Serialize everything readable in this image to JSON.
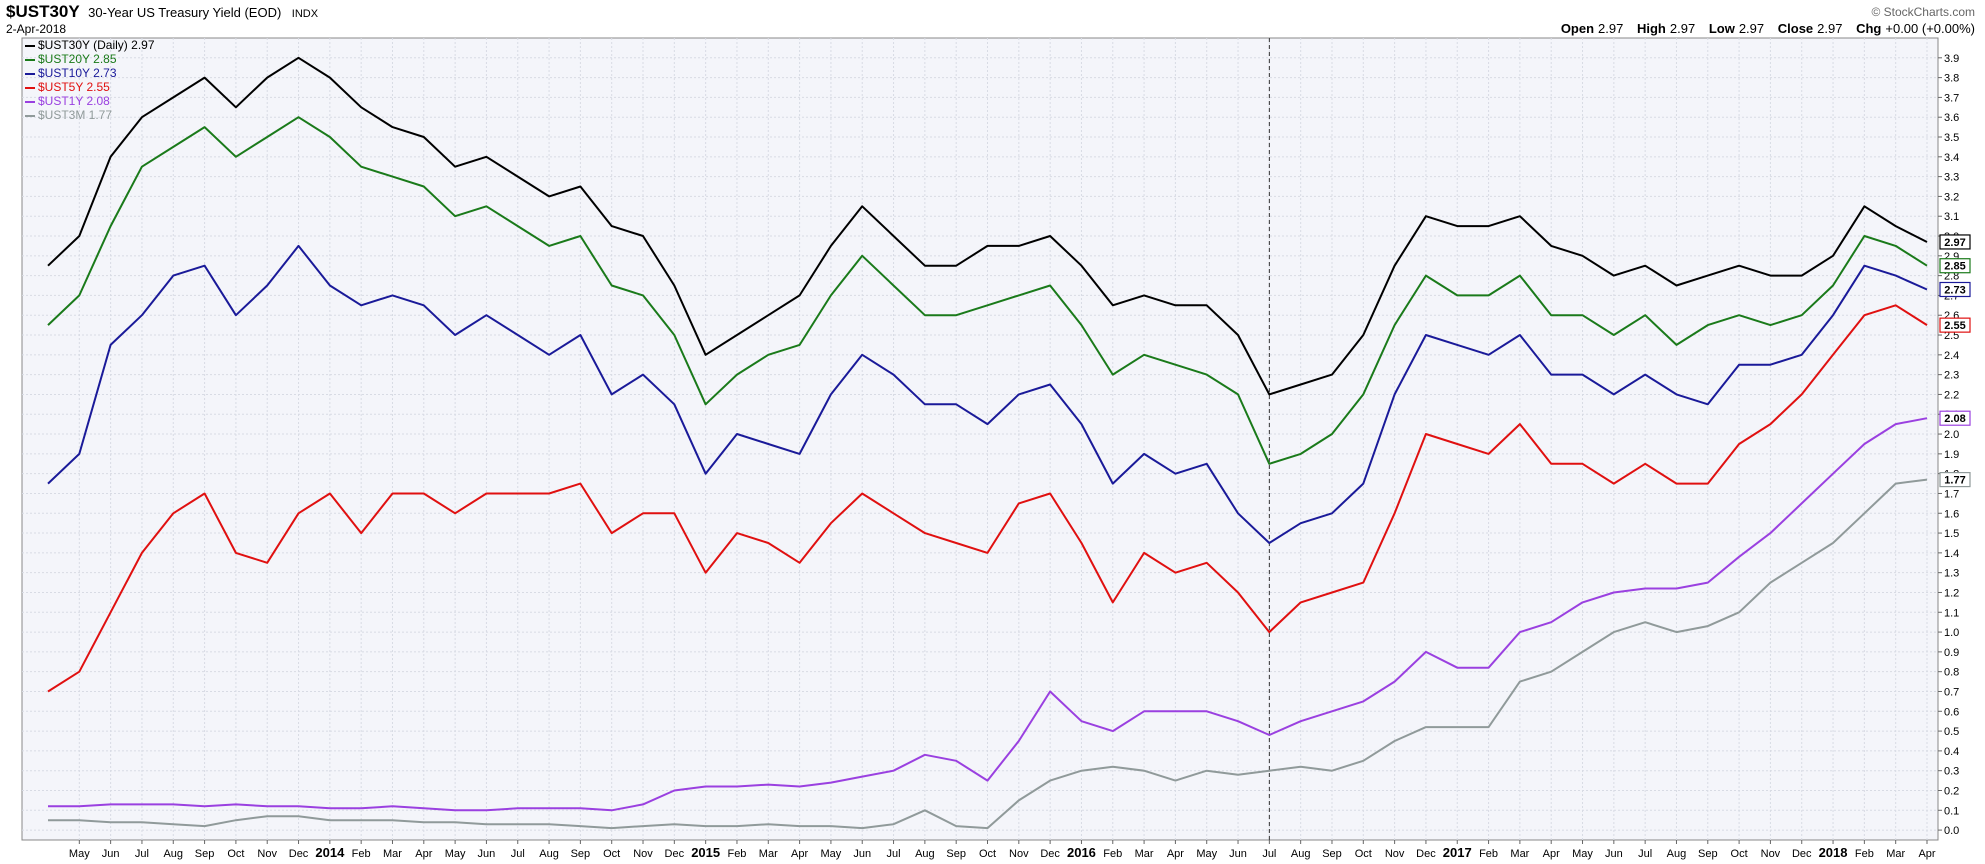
{
  "header": {
    "symbol": "$UST30Y",
    "subtitle": "30-Year US Treasury Yield (EOD)",
    "exchange": "INDX",
    "date": "2-Apr-2018",
    "brand": "© StockCharts.com",
    "ohlc": [
      {
        "label": "Open",
        "value": "2.97"
      },
      {
        "label": "High",
        "value": "2.97"
      },
      {
        "label": "Low",
        "value": "2.97"
      },
      {
        "label": "Close",
        "value": "2.97"
      },
      {
        "label": "Chg",
        "value": "+0.00 (+0.00%)"
      }
    ]
  },
  "legend": [
    {
      "label": "$UST30Y (Daily) 2.97",
      "color": "#000000"
    },
    {
      "label": "$UST20Y 2.85",
      "color": "#1a7a1a"
    },
    {
      "label": "$UST10Y 2.73",
      "color": "#1a1a99"
    },
    {
      "label": "$UST5Y 2.55",
      "color": "#e01010"
    },
    {
      "label": "$UST1Y 2.08",
      "color": "#9a40e0"
    },
    {
      "label": "$UST3M 1.77",
      "color": "#909a9a"
    }
  ],
  "chart_data": {
    "type": "line",
    "x": [
      "2013-04",
      "2013-05",
      "2013-06",
      "2013-07",
      "2013-08",
      "2013-09",
      "2013-10",
      "2013-11",
      "2013-12",
      "2014-01",
      "2014-02",
      "2014-03",
      "2014-04",
      "2014-05",
      "2014-06",
      "2014-07",
      "2014-08",
      "2014-09",
      "2014-10",
      "2014-11",
      "2014-12",
      "2015-01",
      "2015-02",
      "2015-03",
      "2015-04",
      "2015-05",
      "2015-06",
      "2015-07",
      "2015-08",
      "2015-09",
      "2015-10",
      "2015-11",
      "2015-12",
      "2016-01",
      "2016-02",
      "2016-03",
      "2016-04",
      "2016-05",
      "2016-06",
      "2016-07",
      "2016-08",
      "2016-09",
      "2016-10",
      "2016-11",
      "2016-12",
      "2017-01",
      "2017-02",
      "2017-03",
      "2017-04",
      "2017-05",
      "2017-06",
      "2017-07",
      "2017-08",
      "2017-09",
      "2017-10",
      "2017-11",
      "2017-12",
      "2018-01",
      "2018-02",
      "2018-03",
      "2018-04"
    ],
    "series": [
      {
        "name": "$UST30Y",
        "color": "#000000",
        "last": "2.97",
        "values": [
          2.85,
          3.0,
          3.4,
          3.6,
          3.7,
          3.8,
          3.65,
          3.8,
          3.9,
          3.8,
          3.65,
          3.55,
          3.5,
          3.35,
          3.4,
          3.3,
          3.2,
          3.25,
          3.05,
          3.0,
          2.75,
          2.4,
          2.5,
          2.6,
          2.7,
          2.95,
          3.15,
          3.0,
          2.85,
          2.85,
          2.95,
          2.95,
          3.0,
          2.85,
          2.65,
          2.7,
          2.65,
          2.65,
          2.5,
          2.2,
          2.25,
          2.3,
          2.5,
          2.85,
          3.1,
          3.05,
          3.05,
          3.1,
          2.95,
          2.9,
          2.8,
          2.85,
          2.75,
          2.8,
          2.85,
          2.8,
          2.8,
          2.9,
          3.15,
          3.05,
          2.97
        ]
      },
      {
        "name": "$UST20Y",
        "color": "#1a7a1a",
        "last": "2.85",
        "values": [
          2.55,
          2.7,
          3.05,
          3.35,
          3.45,
          3.55,
          3.4,
          3.5,
          3.6,
          3.5,
          3.35,
          3.3,
          3.25,
          3.1,
          3.15,
          3.05,
          2.95,
          3.0,
          2.75,
          2.7,
          2.5,
          2.15,
          2.3,
          2.4,
          2.45,
          2.7,
          2.9,
          2.75,
          2.6,
          2.6,
          2.65,
          2.7,
          2.75,
          2.55,
          2.3,
          2.4,
          2.35,
          2.3,
          2.2,
          1.85,
          1.9,
          2.0,
          2.2,
          2.55,
          2.8,
          2.7,
          2.7,
          2.8,
          2.6,
          2.6,
          2.5,
          2.6,
          2.45,
          2.55,
          2.6,
          2.55,
          2.6,
          2.75,
          3.0,
          2.95,
          2.85
        ]
      },
      {
        "name": "$UST10Y",
        "color": "#1a1a99",
        "last": "2.73",
        "values": [
          1.75,
          1.9,
          2.45,
          2.6,
          2.8,
          2.85,
          2.6,
          2.75,
          2.95,
          2.75,
          2.65,
          2.7,
          2.65,
          2.5,
          2.6,
          2.5,
          2.4,
          2.5,
          2.2,
          2.3,
          2.15,
          1.8,
          2.0,
          1.95,
          1.9,
          2.2,
          2.4,
          2.3,
          2.15,
          2.15,
          2.05,
          2.2,
          2.25,
          2.05,
          1.75,
          1.9,
          1.8,
          1.85,
          1.6,
          1.45,
          1.55,
          1.6,
          1.75,
          2.2,
          2.5,
          2.45,
          2.4,
          2.5,
          2.3,
          2.3,
          2.2,
          2.3,
          2.2,
          2.15,
          2.35,
          2.35,
          2.4,
          2.6,
          2.85,
          2.8,
          2.73
        ]
      },
      {
        "name": "$UST5Y",
        "color": "#e01010",
        "last": "2.55",
        "values": [
          0.7,
          0.8,
          1.1,
          1.4,
          1.6,
          1.7,
          1.4,
          1.35,
          1.6,
          1.7,
          1.5,
          1.7,
          1.7,
          1.6,
          1.7,
          1.7,
          1.7,
          1.75,
          1.5,
          1.6,
          1.6,
          1.3,
          1.5,
          1.45,
          1.35,
          1.55,
          1.7,
          1.6,
          1.5,
          1.45,
          1.4,
          1.65,
          1.7,
          1.45,
          1.15,
          1.4,
          1.3,
          1.35,
          1.2,
          1.0,
          1.15,
          1.2,
          1.25,
          1.6,
          2.0,
          1.95,
          1.9,
          2.05,
          1.85,
          1.85,
          1.75,
          1.85,
          1.75,
          1.75,
          1.95,
          2.05,
          2.2,
          2.4,
          2.6,
          2.65,
          2.55
        ]
      },
      {
        "name": "$UST1Y",
        "color": "#9a40e0",
        "last": "2.08",
        "values": [
          0.12,
          0.12,
          0.13,
          0.13,
          0.13,
          0.12,
          0.13,
          0.12,
          0.12,
          0.11,
          0.11,
          0.12,
          0.11,
          0.1,
          0.1,
          0.11,
          0.11,
          0.11,
          0.1,
          0.13,
          0.2,
          0.22,
          0.22,
          0.23,
          0.22,
          0.24,
          0.27,
          0.3,
          0.38,
          0.35,
          0.25,
          0.45,
          0.7,
          0.55,
          0.5,
          0.6,
          0.6,
          0.6,
          0.55,
          0.48,
          0.55,
          0.6,
          0.65,
          0.75,
          0.9,
          0.82,
          0.82,
          1.0,
          1.05,
          1.15,
          1.2,
          1.22,
          1.22,
          1.25,
          1.38,
          1.5,
          1.65,
          1.8,
          1.95,
          2.05,
          2.08
        ]
      },
      {
        "name": "$UST3M",
        "color": "#909a9a",
        "last": "1.77",
        "values": [
          0.05,
          0.05,
          0.04,
          0.04,
          0.03,
          0.02,
          0.05,
          0.07,
          0.07,
          0.05,
          0.05,
          0.05,
          0.04,
          0.04,
          0.03,
          0.03,
          0.03,
          0.02,
          0.01,
          0.02,
          0.03,
          0.02,
          0.02,
          0.03,
          0.02,
          0.02,
          0.01,
          0.03,
          0.1,
          0.02,
          0.01,
          0.15,
          0.25,
          0.3,
          0.32,
          0.3,
          0.25,
          0.3,
          0.28,
          0.3,
          0.32,
          0.3,
          0.35,
          0.45,
          0.52,
          0.52,
          0.52,
          0.75,
          0.8,
          0.9,
          1.0,
          1.05,
          1.0,
          1.03,
          1.1,
          1.25,
          1.35,
          1.45,
          1.6,
          1.75,
          1.77
        ]
      }
    ],
    "ylim": [
      -0.05,
      4.0
    ],
    "yticks": [
      0.0,
      0.1,
      0.2,
      0.3,
      0.4,
      0.5,
      0.6,
      0.7,
      0.8,
      0.9,
      1.0,
      1.1,
      1.2,
      1.3,
      1.4,
      1.5,
      1.6,
      1.7,
      1.8,
      1.9,
      2.0,
      2.1,
      2.2,
      2.3,
      2.4,
      2.5,
      2.6,
      2.7,
      2.8,
      2.9,
      3.0,
      3.1,
      3.2,
      3.3,
      3.4,
      3.5,
      3.6,
      3.7,
      3.8,
      3.9
    ],
    "xticks": [
      {
        "label": "May",
        "x": "2013-05"
      },
      {
        "label": "Jun",
        "x": "2013-06"
      },
      {
        "label": "Jul",
        "x": "2013-07"
      },
      {
        "label": "Aug",
        "x": "2013-08"
      },
      {
        "label": "Sep",
        "x": "2013-09"
      },
      {
        "label": "Oct",
        "x": "2013-10"
      },
      {
        "label": "Nov",
        "x": "2013-11"
      },
      {
        "label": "Dec",
        "x": "2013-12"
      },
      {
        "label": "2014",
        "x": "2014-01",
        "year": true
      },
      {
        "label": "Feb",
        "x": "2014-02"
      },
      {
        "label": "Mar",
        "x": "2014-03"
      },
      {
        "label": "Apr",
        "x": "2014-04"
      },
      {
        "label": "May",
        "x": "2014-05"
      },
      {
        "label": "Jun",
        "x": "2014-06"
      },
      {
        "label": "Jul",
        "x": "2014-07"
      },
      {
        "label": "Aug",
        "x": "2014-08"
      },
      {
        "label": "Sep",
        "x": "2014-09"
      },
      {
        "label": "Oct",
        "x": "2014-10"
      },
      {
        "label": "Nov",
        "x": "2014-11"
      },
      {
        "label": "Dec",
        "x": "2014-12"
      },
      {
        "label": "2015",
        "x": "2015-01",
        "year": true
      },
      {
        "label": "Feb",
        "x": "2015-02"
      },
      {
        "label": "Mar",
        "x": "2015-03"
      },
      {
        "label": "Apr",
        "x": "2015-04"
      },
      {
        "label": "May",
        "x": "2015-05"
      },
      {
        "label": "Jun",
        "x": "2015-06"
      },
      {
        "label": "Jul",
        "x": "2015-07"
      },
      {
        "label": "Aug",
        "x": "2015-08"
      },
      {
        "label": "Sep",
        "x": "2015-09"
      },
      {
        "label": "Oct",
        "x": "2015-10"
      },
      {
        "label": "Nov",
        "x": "2015-11"
      },
      {
        "label": "Dec",
        "x": "2015-12"
      },
      {
        "label": "2016",
        "x": "2016-01",
        "year": true
      },
      {
        "label": "Feb",
        "x": "2016-02"
      },
      {
        "label": "Mar",
        "x": "2016-03"
      },
      {
        "label": "Apr",
        "x": "2016-04"
      },
      {
        "label": "May",
        "x": "2016-05"
      },
      {
        "label": "Jun",
        "x": "2016-06"
      },
      {
        "label": "Jul",
        "x": "2016-07"
      },
      {
        "label": "Aug",
        "x": "2016-08"
      },
      {
        "label": "Sep",
        "x": "2016-09"
      },
      {
        "label": "Oct",
        "x": "2016-10"
      },
      {
        "label": "Nov",
        "x": "2016-11"
      },
      {
        "label": "Dec",
        "x": "2016-12"
      },
      {
        "label": "2017",
        "x": "2017-01",
        "year": true
      },
      {
        "label": "Feb",
        "x": "2017-02"
      },
      {
        "label": "Mar",
        "x": "2017-03"
      },
      {
        "label": "Apr",
        "x": "2017-04"
      },
      {
        "label": "May",
        "x": "2017-05"
      },
      {
        "label": "Jun",
        "x": "2017-06"
      },
      {
        "label": "Jul",
        "x": "2017-07"
      },
      {
        "label": "Aug",
        "x": "2017-08"
      },
      {
        "label": "Sep",
        "x": "2017-09"
      },
      {
        "label": "Oct",
        "x": "2017-10"
      },
      {
        "label": "Nov",
        "x": "2017-11"
      },
      {
        "label": "Dec",
        "x": "2017-12"
      },
      {
        "label": "2018",
        "x": "2018-01",
        "year": true
      },
      {
        "label": "Feb",
        "x": "2018-02"
      },
      {
        "label": "Mar",
        "x": "2018-03"
      },
      {
        "label": "Apr",
        "x": "2018-04"
      }
    ],
    "marker_x": "2016-07",
    "grid": true,
    "legend_position": "top-left",
    "background": "#f4f5fa"
  }
}
